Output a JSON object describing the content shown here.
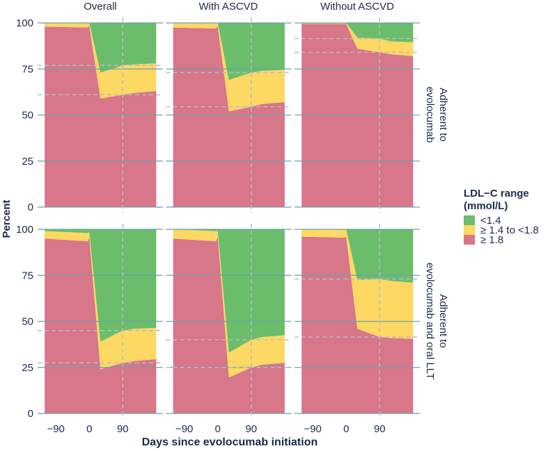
{
  "chart_data": {
    "type": "area",
    "stacked": true,
    "xlabel": "Days since evolocumab initiation",
    "ylabel": "Percent",
    "ylim": [
      0,
      100
    ],
    "xlim": [
      -139,
      198
    ],
    "x_ticks": [
      "-90",
      "0",
      "90"
    ],
    "x_tick_values": [
      -90,
      0,
      90
    ],
    "y_ticks": [
      "0",
      "25",
      "50",
      "75",
      "100"
    ],
    "y_tick_values": [
      0,
      25,
      50,
      75,
      100
    ],
    "column_labels": [
      "Overall",
      "With ASCVD",
      "Without ASCVD"
    ],
    "row_labels": [
      [
        "Adherent to",
        "evolocumab"
      ],
      [
        "Adherent to",
        "evolocumab and oral LLT"
      ]
    ],
    "reference_day": 90,
    "legend": {
      "title_line1": "LDL−C range",
      "title_line2": "(mmol/L)",
      "position": "right",
      "entries": [
        "<1.4",
        "≥ 1.4 to <1.8",
        "≥ 1.8"
      ]
    },
    "colors": {
      "lt_1_4": "#6bbd6b",
      "1_4_to_1_8": "#fdd862",
      "ge_1_8": "#d8768a",
      "grid": "#6aa3a8",
      "ref": "#b8bcc4"
    },
    "x": [
      -120,
      -5,
      0,
      30,
      90,
      120,
      180
    ],
    "panels": [
      {
        "row": 0,
        "col": 0,
        "ge_1_8": [
          98,
          97.5,
          98.5,
          59,
          61,
          62,
          63
        ],
        "1_4_to_1_8": [
          2,
          2.5,
          1.5,
          14,
          16,
          15.5,
          15
        ],
        "lt_1_4": [
          0,
          0,
          0,
          27,
          23,
          22.5,
          22
        ]
      },
      {
        "row": 0,
        "col": 1,
        "ge_1_8": [
          97.5,
          97,
          98.5,
          52,
          54.5,
          56,
          57
        ],
        "1_4_to_1_8": [
          2.5,
          3,
          1.5,
          17,
          18.5,
          18,
          17.5
        ],
        "lt_1_4": [
          0,
          0,
          0,
          31,
          27,
          26,
          25.5
        ]
      },
      {
        "row": 0,
        "col": 2,
        "ge_1_8": [
          99.5,
          99.5,
          99.5,
          86,
          84,
          83,
          82
        ],
        "1_4_to_1_8": [
          0.5,
          0.5,
          0.5,
          6,
          7.5,
          7,
          7.5
        ],
        "lt_1_4": [
          0,
          0,
          0,
          8,
          8.5,
          10,
          10.5
        ]
      },
      {
        "row": 1,
        "col": 0,
        "ge_1_8": [
          95,
          93.5,
          95.5,
          24,
          27.5,
          28.5,
          29.5
        ],
        "1_4_to_1_8": [
          4,
          4.5,
          3,
          15,
          17.5,
          17.5,
          17
        ],
        "lt_1_4": [
          1,
          2,
          1.5,
          61,
          55,
          54,
          53.5
        ]
      },
      {
        "row": 1,
        "col": 1,
        "ge_1_8": [
          95,
          93.5,
          96,
          19.5,
          25,
          26.5,
          27.5
        ],
        "1_4_to_1_8": [
          5,
          5.5,
          3,
          13.5,
          15,
          15,
          15
        ],
        "lt_1_4": [
          0,
          1,
          1,
          67,
          60,
          58.5,
          57.5
        ]
      },
      {
        "row": 1,
        "col": 2,
        "ge_1_8": [
          96,
          95.5,
          96,
          46,
          41.5,
          41,
          40.5
        ],
        "1_4_to_1_8": [
          4,
          4.5,
          4,
          26.5,
          31.5,
          31,
          30.5
        ],
        "lt_1_4": [
          0,
          0,
          0,
          27.5,
          27,
          28,
          29
        ]
      }
    ]
  }
}
